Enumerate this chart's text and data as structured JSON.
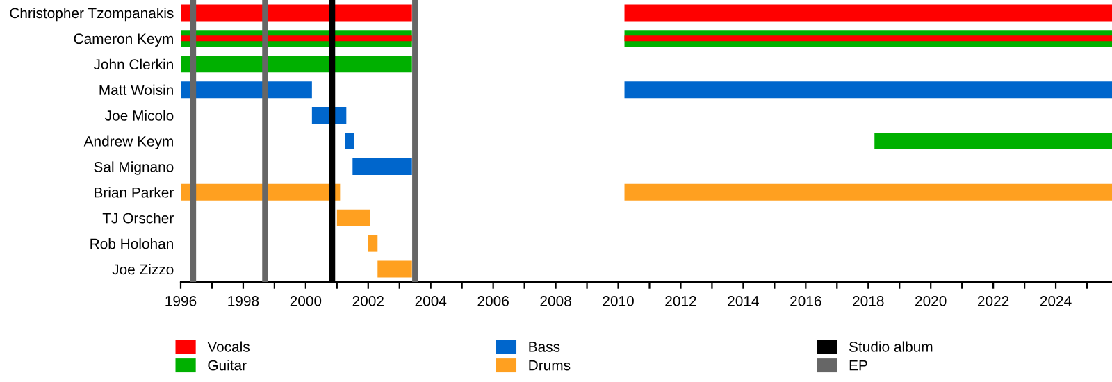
{
  "chart_data": {
    "type": "bar",
    "orientation": "horizontal",
    "categories": [
      "Christopher Tzompanakis",
      "Cameron Keym",
      "John Clerkin",
      "Matt Woisin",
      "Joe Micolo",
      "Andrew Keym",
      "Sal Mignano",
      "Brian Parker",
      "TJ Orscher",
      "Rob Holohan",
      "Joe Zizzo"
    ],
    "series": [
      {
        "name": "Vocals",
        "color": "#ff0000",
        "base": [
          1996,
          null,
          null,
          null,
          null,
          null,
          null,
          null,
          null,
          null,
          null
        ],
        "values": [
          7.4,
          null,
          null,
          null,
          null,
          null,
          null,
          null,
          null,
          null,
          null
        ]
      },
      {
        "color": "#ff0000",
        "base": [
          2010.2,
          null,
          null,
          null,
          null,
          null,
          null,
          null,
          null,
          null,
          null
        ],
        "values": [
          15.6,
          null,
          null,
          null,
          null,
          null,
          null,
          null,
          null,
          null,
          null
        ]
      },
      {
        "name": "Guitar",
        "color": "#00b000",
        "base": [
          null,
          1996,
          1996,
          null,
          null,
          2018.2,
          null,
          null,
          null,
          null,
          null
        ],
        "values": [
          null,
          7.4,
          7.4,
          null,
          null,
          7.6,
          null,
          null,
          null,
          null,
          null
        ]
      },
      {
        "color": "#00b000",
        "base": [
          null,
          2010.2,
          null,
          null,
          null,
          null,
          null,
          null,
          null,
          null,
          null
        ],
        "values": [
          null,
          15.6,
          null,
          null,
          null,
          null,
          null,
          null,
          null,
          null,
          null
        ]
      },
      {
        "color": "#ff0000",
        "base": [
          null,
          1996,
          null,
          null,
          null,
          null,
          null,
          null,
          null,
          null,
          null
        ],
        "values": [
          null,
          7.4,
          null,
          null,
          null,
          null,
          null,
          null,
          null,
          null,
          null
        ]
      },
      {
        "color": "#ff0000",
        "base": [
          null,
          2010.2,
          null,
          null,
          null,
          null,
          null,
          null,
          null,
          null,
          null
        ],
        "values": [
          null,
          15.6,
          null,
          null,
          null,
          null,
          null,
          null,
          null,
          null,
          null
        ]
      },
      {
        "name": "Bass",
        "color": "#0066cc",
        "base": [
          null,
          null,
          null,
          1996,
          2000.2,
          2001.25,
          2001.5,
          null,
          null,
          null,
          null
        ],
        "values": [
          null,
          null,
          null,
          4.2,
          1.1,
          0.3,
          1.9,
          null,
          null,
          null,
          null
        ]
      },
      {
        "color": "#0066cc",
        "base": [
          null,
          null,
          null,
          2010.2,
          null,
          null,
          null,
          null,
          null,
          null,
          null
        ],
        "values": [
          null,
          null,
          null,
          15.6,
          null,
          null,
          null,
          null,
          null,
          null,
          null
        ]
      },
      {
        "name": "Drums",
        "color": "#ffa020",
        "base": [
          null,
          null,
          null,
          null,
          null,
          null,
          null,
          1996,
          2001.0,
          2002.0,
          2002.3
        ],
        "values": [
          null,
          null,
          null,
          null,
          null,
          null,
          null,
          5.1,
          1.05,
          0.3,
          1.1
        ]
      },
      {
        "color": "#ffa020",
        "base": [
          null,
          null,
          null,
          null,
          null,
          null,
          null,
          2010.2,
          null,
          null,
          null
        ],
        "values": [
          null,
          null,
          null,
          null,
          null,
          null,
          null,
          15.6,
          null,
          null,
          null
        ]
      }
    ],
    "ref_lines": [
      {
        "axis": "x",
        "value": 2000.85,
        "label": "Studio album",
        "color": "#000000"
      },
      {
        "axis": "x",
        "value": 1996.4,
        "label": "EP",
        "color": "#666666"
      },
      {
        "axis": "x",
        "value": 1998.7,
        "color": "#666666"
      },
      {
        "axis": "x",
        "value": 2003.5,
        "color": "#666666"
      }
    ],
    "xlim": [
      1996,
      2025.8
    ],
    "xticks": [
      1996,
      {
        "value": 1997,
        "label": null
      },
      1998,
      {
        "value": 1999,
        "label": null
      },
      2000,
      {
        "value": 2001,
        "label": null
      },
      2002,
      {
        "value": 2003,
        "label": null
      },
      2004,
      {
        "value": 2005,
        "label": null
      },
      2006,
      {
        "value": 2007,
        "label": null
      },
      2008,
      {
        "value": 2009,
        "label": null
      },
      2010,
      {
        "value": 2011,
        "label": null
      },
      2012,
      {
        "value": 2013,
        "label": null
      },
      2014,
      {
        "value": 2015,
        "label": null
      },
      2016,
      {
        "value": 2017,
        "label": null
      },
      2018,
      {
        "value": 2019,
        "label": null
      },
      2020,
      {
        "value": 2021,
        "label": null
      },
      2022,
      {
        "value": 2023,
        "label": null
      },
      2024,
      {
        "value": 2025,
        "label": null
      }
    ],
    "legend": "bottom",
    "grid": false
  }
}
